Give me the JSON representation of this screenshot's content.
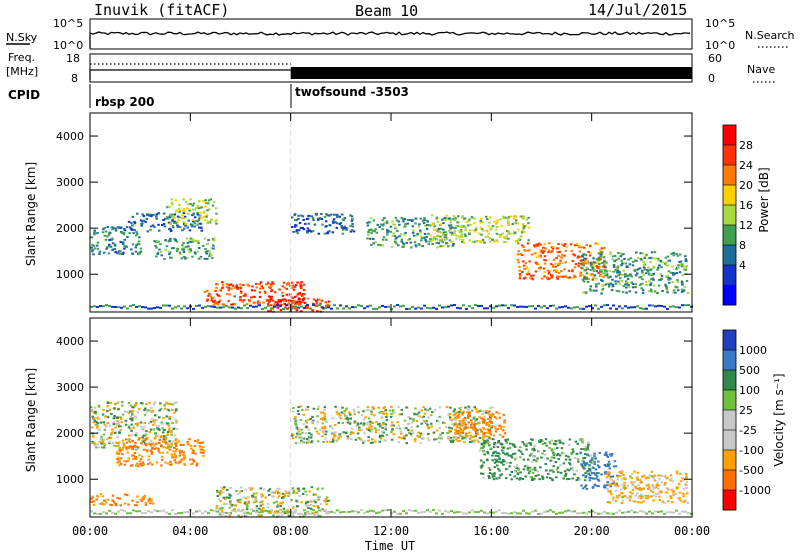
{
  "header": {
    "station": "Inuvik (fitACF)",
    "beam": "Beam 10",
    "date": "14/Jul/2015"
  },
  "top_panels": {
    "nsky_label": "N.Sky",
    "nsky_ticks": [
      "10^5",
      "10^0"
    ],
    "nsearch_label": "N.Search",
    "nsearch_ticks": [
      "10^5",
      "10^0"
    ],
    "freq_label": "Freq.",
    "freq_unit": "[MHz]",
    "freq_ticks": [
      "18",
      "8"
    ],
    "nave_label": "Nave",
    "nave_ticks": [
      "60",
      "0"
    ],
    "cpid_label": "CPID",
    "cpid_segments": [
      {
        "name": "rbsp 200",
        "start_hour": 0
      },
      {
        "name": "twofsound -3503",
        "start_hour": 8
      }
    ]
  },
  "chart_data": [
    {
      "type": "heatmap",
      "panel": "power",
      "ylabel": "Slant Range [km]",
      "yticks": [
        "4000",
        "3000",
        "2000",
        "1000"
      ],
      "ylim": [
        180,
        4500
      ],
      "xlim": [
        0,
        24
      ],
      "colorbar_label": "Power [dB]",
      "colorbar_ticks": [
        "28",
        "24",
        "20",
        "16",
        "12",
        "8",
        "4"
      ],
      "colorbar_colors": [
        "#ff0000",
        "#ff3300",
        "#ff7a00",
        "#ffd000",
        "#a8d940",
        "#3fa050",
        "#1e6e9a",
        "#1432c8",
        "#0000ff"
      ],
      "regions": [
        {
          "x": [
            0.0,
            2.0
          ],
          "y": [
            1450,
            2050
          ],
          "level": 10
        },
        {
          "x": [
            1.5,
            4.5
          ],
          "y": [
            1950,
            2350
          ],
          "level": 8
        },
        {
          "x": [
            3.0,
            5.0
          ],
          "y": [
            2100,
            2650
          ],
          "level": 16
        },
        {
          "x": [
            2.5,
            5.0
          ],
          "y": [
            1350,
            1800
          ],
          "level": 12
        },
        {
          "x": [
            4.5,
            8.5
          ],
          "y": [
            350,
            850
          ],
          "level": 26
        },
        {
          "x": [
            7.0,
            9.5
          ],
          "y": [
            200,
            500
          ],
          "level": 28
        },
        {
          "x": [
            8.0,
            10.5
          ],
          "y": [
            1900,
            2350
          ],
          "level": 8
        },
        {
          "x": [
            11.0,
            14.5
          ],
          "y": [
            1600,
            2250
          ],
          "level": 12
        },
        {
          "x": [
            13.5,
            17.5
          ],
          "y": [
            1700,
            2300
          ],
          "level": 16
        },
        {
          "x": [
            17.0,
            20.5
          ],
          "y": [
            900,
            1700
          ],
          "level": 24
        },
        {
          "x": [
            19.5,
            23.8
          ],
          "y": [
            600,
            1500
          ],
          "level": 12
        }
      ]
    },
    {
      "type": "heatmap",
      "panel": "velocity",
      "ylabel": "Slant Range [km]",
      "yticks": [
        "4000",
        "3000",
        "2000",
        "1000"
      ],
      "ylim": [
        180,
        4500
      ],
      "xlim": [
        0,
        24
      ],
      "xticks": [
        "00:00",
        "04:00",
        "08:00",
        "12:00",
        "16:00",
        "20:00",
        "00:00"
      ],
      "xlabel": "Time UT",
      "colorbar_label": "Velocity [m s⁻¹]",
      "colorbar_ticks": [
        "1000",
        "500",
        "100",
        "25",
        "-25",
        "-100",
        "-500",
        "-1000"
      ],
      "colorbar_colors": [
        "#2040c0",
        "#3a78c8",
        "#2e8a4a",
        "#70c040",
        "#c8c8c8",
        "#c8c8c8",
        "#ffa000",
        "#ff7000",
        "#ff0000"
      ],
      "regions": [
        {
          "x": [
            0.0,
            3.5
          ],
          "y": [
            1700,
            2700
          ],
          "level": 0
        },
        {
          "x": [
            1.0,
            4.5
          ],
          "y": [
            1300,
            1900
          ],
          "level": -500
        },
        {
          "x": [
            0.0,
            2.5
          ],
          "y": [
            450,
            700
          ],
          "level": -500
        },
        {
          "x": [
            5.0,
            9.5
          ],
          "y": [
            200,
            850
          ],
          "level": 0
        },
        {
          "x": [
            8.0,
            16.0
          ],
          "y": [
            1800,
            2600
          ],
          "level": 0
        },
        {
          "x": [
            14.5,
            16.5
          ],
          "y": [
            1900,
            2500
          ],
          "level": -500
        },
        {
          "x": [
            15.5,
            20.0
          ],
          "y": [
            1000,
            1900
          ],
          "level": 200
        },
        {
          "x": [
            19.5,
            21.0
          ],
          "y": [
            800,
            1600
          ],
          "level": 700
        },
        {
          "x": [
            20.5,
            23.8
          ],
          "y": [
            500,
            1200
          ],
          "level": -200
        }
      ]
    }
  ]
}
